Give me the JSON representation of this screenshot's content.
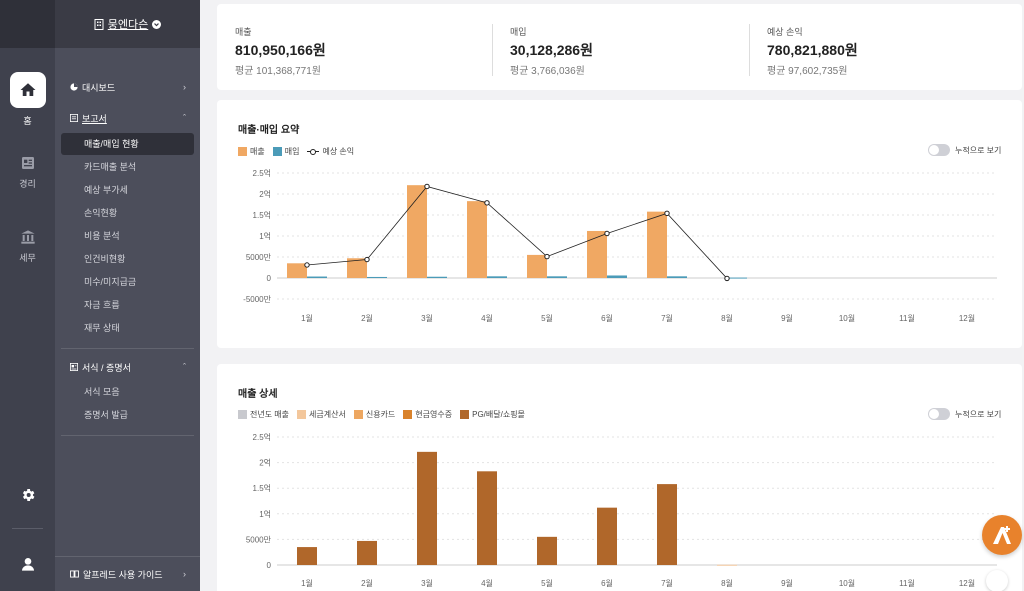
{
  "rail": {
    "items": [
      {
        "label": "홈",
        "icon": "home-icon"
      },
      {
        "label": "경리",
        "icon": "ledger-icon"
      },
      {
        "label": "세무",
        "icon": "bank-icon"
      }
    ],
    "settings_icon": "gear-icon",
    "profile_icon": "user-icon"
  },
  "brand": {
    "name": "뭉엔다슨"
  },
  "nav": {
    "dashboard": "대시보드",
    "reports": "보고서",
    "report_items": [
      "매출/매입 현황",
      "카드매출 분석",
      "예상 부가세",
      "손익현황",
      "비용 분석",
      "인건비현황",
      "미수/미지급금",
      "자금 흐름",
      "재무 상태"
    ],
    "forms": "서식 / 증명서",
    "form_items": [
      "서식 모음",
      "증명서 발급"
    ],
    "guide": "알프레드 사용 가이드"
  },
  "stats": [
    {
      "label": "매출",
      "value": "810,950,166원",
      "avg": "평균 101,368,771원"
    },
    {
      "label": "매입",
      "value": "30,128,286원",
      "avg": "평균 3,766,036원"
    },
    {
      "label": "예상 손익",
      "value": "780,821,880원",
      "avg": "평균 97,602,735원"
    }
  ],
  "summary": {
    "title": "매출·매입 요약",
    "toggle_label": "누적으로 보기"
  },
  "detail": {
    "title": "매출 상세",
    "toggle_label": "누적으로 보기"
  },
  "colors": {
    "sales": "#f0a863",
    "purchase": "#4b9bb8",
    "profit": "#222222",
    "prev_year": "#c8c9ce",
    "tax_invoice": "#f3c79c",
    "credit_card": "#eda761",
    "cash_receipt": "#d9822b",
    "pg": "#b0672a"
  },
  "chart_data": [
    {
      "type": "bar",
      "title": "매출·매입 요약",
      "categories": [
        "1월",
        "2월",
        "3월",
        "4월",
        "5월",
        "6월",
        "7월",
        "8월",
        "9월",
        "10월",
        "11월",
        "12월"
      ],
      "series": [
        {
          "name": "매출",
          "type": "bar",
          "values": [
            35000000,
            47000000,
            221000000,
            183000000,
            55000000,
            112000000,
            158000000,
            0,
            0,
            0,
            0,
            0
          ]
        },
        {
          "name": "매입",
          "type": "bar",
          "values": [
            3500000,
            2500000,
            3000000,
            4000000,
            4000000,
            6000000,
            4000000,
            1000000,
            0,
            0,
            0,
            0
          ]
        },
        {
          "name": "예상 손익",
          "type": "line",
          "values": [
            31000000,
            44000000,
            218000000,
            179000000,
            51000000,
            106000000,
            154000000,
            -1000000,
            null,
            null,
            null,
            null
          ]
        }
      ],
      "yticks": [
        -50000000,
        0,
        50000000,
        100000000,
        150000000,
        200000000,
        250000000
      ],
      "ytick_labels": [
        "-5000만",
        "0",
        "5000만",
        "1억",
        "1.5억",
        "2억",
        "2.5억"
      ],
      "ylim": [
        -50000000,
        250000000
      ],
      "grid": true,
      "legend": "top-left"
    },
    {
      "type": "bar",
      "title": "매출 상세",
      "categories": [
        "1월",
        "2월",
        "3월",
        "4월",
        "5월",
        "6월",
        "7월",
        "8월",
        "9월",
        "10월",
        "11월",
        "12월"
      ],
      "series": [
        {
          "name": "전년도 매출",
          "values": [
            0,
            0,
            0,
            0,
            0,
            0,
            0,
            0,
            0,
            0,
            0,
            0
          ]
        },
        {
          "name": "세금계산서",
          "values": [
            0,
            0,
            0,
            0,
            0,
            0,
            0,
            500000,
            0,
            0,
            0,
            0
          ]
        },
        {
          "name": "신용카드",
          "values": [
            0,
            0,
            0,
            0,
            0,
            0,
            0,
            0,
            0,
            0,
            0,
            0
          ]
        },
        {
          "name": "현금영수증",
          "values": [
            0,
            0,
            0,
            0,
            0,
            0,
            0,
            0,
            0,
            0,
            0,
            0
          ]
        },
        {
          "name": "PG/배달/쇼핑몰",
          "values": [
            35000000,
            47000000,
            221000000,
            183000000,
            55000000,
            112000000,
            158000000,
            0,
            0,
            0,
            0,
            0
          ]
        }
      ],
      "yticks": [
        0,
        50000000,
        100000000,
        150000000,
        200000000,
        250000000
      ],
      "ytick_labels": [
        "0",
        "5000만",
        "1억",
        "1.5억",
        "2억",
        "2.5억"
      ],
      "ylim": [
        0,
        250000000
      ],
      "grid": true,
      "legend": "top-left"
    }
  ]
}
